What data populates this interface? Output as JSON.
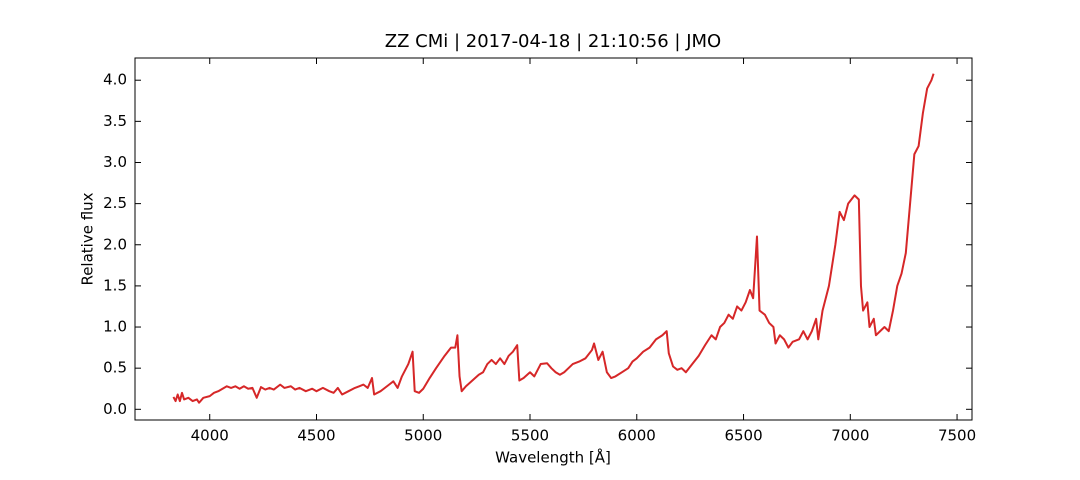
{
  "chart_data": {
    "type": "line",
    "title": "ZZ CMi | 2017-04-18 | 21:10:56 | JMO",
    "x_label": "Wavelength [Å]",
    "y_label": "Relative flux",
    "xlim": [
      3650,
      7570
    ],
    "ylim": [
      -0.13,
      4.27
    ],
    "xticks": [
      4000,
      4500,
      5000,
      5500,
      6000,
      6500,
      7000,
      7500
    ],
    "yticks": [
      {
        "value": 0,
        "label": "0.0"
      },
      0.5,
      {
        "value": 1,
        "label": "1.0"
      },
      1.5,
      {
        "value": 2,
        "label": "2.0"
      },
      2.5,
      {
        "value": 3,
        "label": "3.0"
      },
      3.5,
      {
        "value": 4,
        "label": "4.0"
      }
    ],
    "series": [
      {
        "color": "#d62728",
        "x": [
          3830,
          3840,
          3850,
          3860,
          3870,
          3880,
          3900,
          3920,
          3940,
          3950,
          3970,
          4000,
          4020,
          4040,
          4060,
          4080,
          4100,
          4120,
          4140,
          4160,
          4180,
          4200,
          4220,
          4240,
          4260,
          4280,
          4300,
          4330,
          4350,
          4380,
          4400,
          4420,
          4450,
          4480,
          4500,
          4530,
          4560,
          4580,
          4600,
          4620,
          4650,
          4680,
          4700,
          4720,
          4740,
          4760,
          4770,
          4800,
          4840,
          4860,
          4880,
          4900,
          4930,
          4950,
          4960,
          4980,
          5000,
          5030,
          5060,
          5100,
          5130,
          5150,
          5160,
          5170,
          5180,
          5200,
          5230,
          5260,
          5280,
          5300,
          5320,
          5340,
          5360,
          5380,
          5400,
          5420,
          5440,
          5450,
          5470,
          5500,
          5520,
          5550,
          5580,
          5600,
          5620,
          5640,
          5660,
          5680,
          5700,
          5730,
          5760,
          5790,
          5800,
          5820,
          5840,
          5860,
          5880,
          5900,
          5930,
          5960,
          5980,
          6000,
          6030,
          6060,
          6090,
          6120,
          6140,
          6150,
          6170,
          6190,
          6210,
          6230,
          6260,
          6290,
          6320,
          6350,
          6370,
          6390,
          6410,
          6430,
          6450,
          6470,
          6490,
          6510,
          6530,
          6545,
          6563,
          6575,
          6600,
          6620,
          6640,
          6650,
          6670,
          6690,
          6710,
          6730,
          6760,
          6780,
          6800,
          6820,
          6840,
          6850,
          6870,
          6900,
          6930,
          6950,
          6970,
          6990,
          7020,
          7040,
          7050,
          7060,
          7080,
          7090,
          7110,
          7120,
          7140,
          7160,
          7180,
          7200,
          7220,
          7240,
          7260,
          7280,
          7300,
          7320,
          7340,
          7360,
          7380,
          7390
        ],
        "values": [
          0.15,
          0.1,
          0.18,
          0.1,
          0.2,
          0.12,
          0.14,
          0.1,
          0.12,
          0.08,
          0.14,
          0.16,
          0.2,
          0.22,
          0.25,
          0.28,
          0.26,
          0.28,
          0.25,
          0.28,
          0.25,
          0.26,
          0.14,
          0.27,
          0.24,
          0.26,
          0.24,
          0.3,
          0.26,
          0.28,
          0.24,
          0.26,
          0.22,
          0.25,
          0.22,
          0.26,
          0.22,
          0.2,
          0.26,
          0.18,
          0.22,
          0.26,
          0.28,
          0.3,
          0.26,
          0.38,
          0.18,
          0.22,
          0.3,
          0.34,
          0.26,
          0.4,
          0.55,
          0.7,
          0.22,
          0.2,
          0.25,
          0.38,
          0.5,
          0.65,
          0.75,
          0.75,
          0.9,
          0.4,
          0.22,
          0.28,
          0.35,
          0.42,
          0.45,
          0.55,
          0.6,
          0.55,
          0.62,
          0.55,
          0.65,
          0.7,
          0.78,
          0.35,
          0.38,
          0.45,
          0.4,
          0.55,
          0.56,
          0.5,
          0.45,
          0.42,
          0.45,
          0.5,
          0.55,
          0.58,
          0.62,
          0.72,
          0.8,
          0.6,
          0.7,
          0.45,
          0.38,
          0.4,
          0.45,
          0.5,
          0.58,
          0.62,
          0.7,
          0.75,
          0.85,
          0.9,
          0.95,
          0.68,
          0.52,
          0.48,
          0.5,
          0.45,
          0.55,
          0.65,
          0.78,
          0.9,
          0.85,
          1.0,
          1.05,
          1.15,
          1.1,
          1.25,
          1.2,
          1.3,
          1.45,
          1.35,
          2.1,
          1.2,
          1.15,
          1.05,
          1.0,
          0.8,
          0.9,
          0.85,
          0.75,
          0.82,
          0.85,
          0.95,
          0.85,
          0.95,
          1.1,
          0.85,
          1.2,
          1.5,
          2.0,
          2.4,
          2.3,
          2.5,
          2.6,
          2.55,
          1.5,
          1.2,
          1.3,
          1.0,
          1.1,
          0.9,
          0.95,
          1.0,
          0.95,
          1.2,
          1.5,
          1.65,
          1.9,
          2.5,
          3.1,
          3.2,
          3.6,
          3.9,
          4.0,
          4.08
        ]
      }
    ]
  }
}
